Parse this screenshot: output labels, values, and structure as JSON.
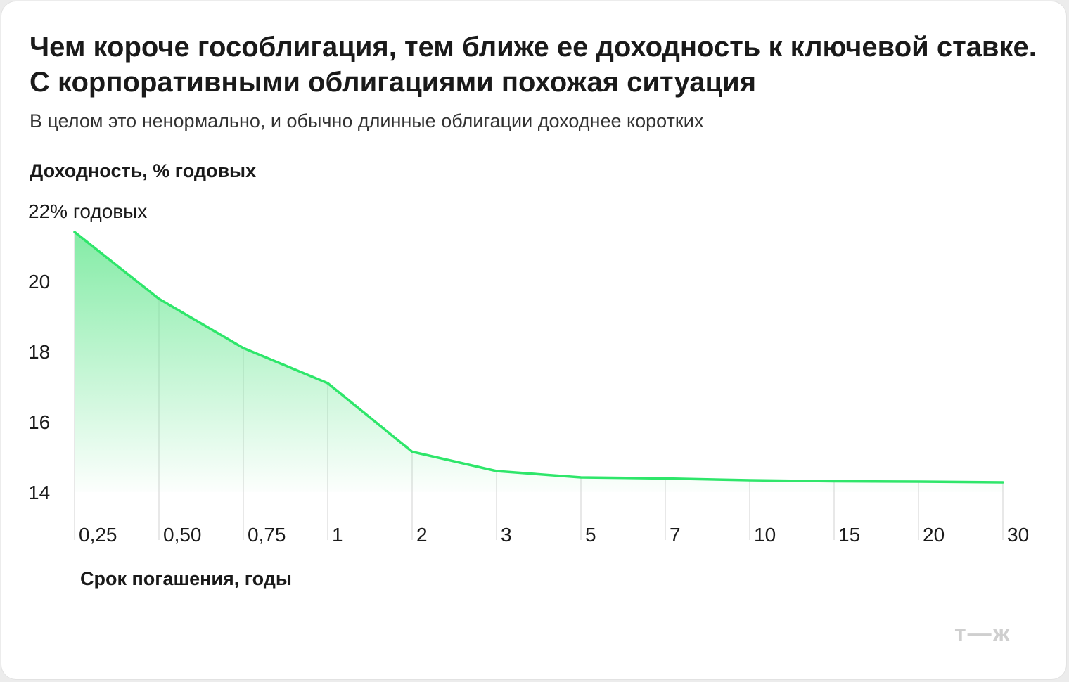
{
  "title": "Чем короче гособлигация, тем ближе ее доходность к ключевой ставке. С корпоративными облигациями похожая ситуация",
  "subtitle": "В целом это ненормально, и обычно длинные облигации доходнее коротких",
  "logo": "т—ж",
  "chart_data": {
    "type": "area",
    "ylabel": "Доходность, % годовых",
    "xlabel": "Срок погашения, годы",
    "categories": [
      "0,25",
      "0,50",
      "0,75",
      "1",
      "2",
      "3",
      "5",
      "7",
      "10",
      "15",
      "20",
      "30"
    ],
    "values": [
      21.4,
      19.5,
      18.1,
      17.1,
      15.15,
      14.6,
      14.42,
      14.39,
      14.34,
      14.31,
      14.3,
      14.28
    ],
    "yticks": [
      {
        "value": 22,
        "label": "22% годовых"
      },
      {
        "value": 20,
        "label": "20"
      },
      {
        "value": 18,
        "label": "18"
      },
      {
        "value": 16,
        "label": "16"
      },
      {
        "value": 14,
        "label": "14"
      }
    ],
    "ylim": [
      14,
      22
    ],
    "line_color": "#2ee66a",
    "fill_color": "#6ee896",
    "grid": "vertical"
  }
}
